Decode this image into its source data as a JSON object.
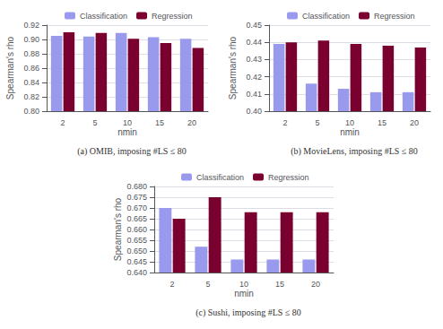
{
  "chart_data": [
    {
      "type": "bar",
      "title": "(a) OMIB, imposing #LS ≤ 80",
      "categories": [
        "2",
        "5",
        "10",
        "15",
        "20"
      ],
      "xlabel": "nmin",
      "ylabel": "Spearman's rho",
      "series": [
        {
          "name": "Classification",
          "color": "#9999ee",
          "values": [
            0.905,
            0.904,
            0.909,
            0.903,
            0.901
          ]
        },
        {
          "name": "Regression",
          "color": "#7a0030",
          "values": [
            0.91,
            0.909,
            0.901,
            0.895,
            0.888
          ]
        }
      ],
      "ylim": [
        0.8,
        0.92
      ],
      "yticks": [
        {
          "value": 0.8,
          "label": "0.80"
        },
        {
          "value": 0.82,
          "label": "0.82"
        },
        {
          "value": 0.84,
          "label": "0.84"
        },
        {
          "value": 0.86,
          "label": "0.86"
        },
        {
          "value": 0.88,
          "label": "0.88"
        },
        {
          "value": 0.9,
          "label": "0.90"
        },
        {
          "value": 0.92,
          "label": "0.92"
        }
      ],
      "grid": true,
      "legend": "top"
    },
    {
      "type": "bar",
      "title": "(b) MovieLens, imposing #LS ≤ 80",
      "categories": [
        "2",
        "5",
        "10",
        "15",
        "20"
      ],
      "xlabel": "nmin",
      "ylabel": "Spearman's rho",
      "series": [
        {
          "name": "Classification",
          "color": "#9999ee",
          "values": [
            0.439,
            0.416,
            0.413,
            0.411,
            0.411
          ]
        },
        {
          "name": "Regression",
          "color": "#7a0030",
          "values": [
            0.44,
            0.441,
            0.439,
            0.438,
            0.437
          ]
        }
      ],
      "ylim": [
        0.4,
        0.45
      ],
      "yticks": [
        {
          "value": 0.4,
          "label": "0.40"
        },
        {
          "value": 0.41,
          "label": "0.41"
        },
        {
          "value": 0.42,
          "label": "0.42"
        },
        {
          "value": 0.43,
          "label": "0.43"
        },
        {
          "value": 0.44,
          "label": "0.44"
        },
        {
          "value": 0.45,
          "label": "0.45"
        }
      ],
      "grid": true,
      "legend": "top"
    },
    {
      "type": "bar",
      "title": "(c) Sushi, imposing #LS ≤ 80",
      "categories": [
        "2",
        "5",
        "10",
        "15",
        "20"
      ],
      "xlabel": "nmin",
      "ylabel": "Spearman's rho",
      "series": [
        {
          "name": "Classification",
          "color": "#9999ee",
          "values": [
            0.67,
            0.652,
            0.646,
            0.646,
            0.646
          ]
        },
        {
          "name": "Regression",
          "color": "#7a0030",
          "values": [
            0.665,
            0.675,
            0.668,
            0.668,
            0.668
          ]
        }
      ],
      "ylim": [
        0.64,
        0.68
      ],
      "yticks": [
        {
          "value": 0.64,
          "label": "0.640"
        },
        {
          "value": 0.645,
          "label": "0.645"
        },
        {
          "value": 0.65,
          "label": "0.650"
        },
        {
          "value": 0.655,
          "label": "0.655"
        },
        {
          "value": 0.66,
          "label": "0.660"
        },
        {
          "value": 0.665,
          "label": "0.665"
        },
        {
          "value": 0.67,
          "label": "0.670"
        },
        {
          "value": 0.675,
          "label": "0.675"
        },
        {
          "value": 0.68,
          "label": "0.680"
        }
      ],
      "grid": true,
      "legend": "top"
    }
  ]
}
